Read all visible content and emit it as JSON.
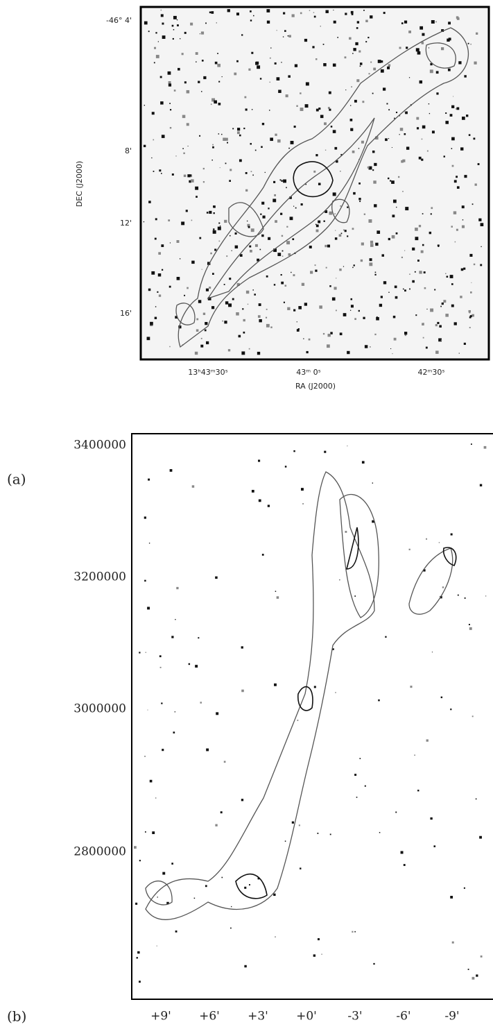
{
  "panel_a": {
    "label": "(a)",
    "y_ticks": [
      "-46° 4'",
      "8'",
      "12'",
      "16'"
    ],
    "x_ticks": [
      "13ʰ43ᵐ30ˢ",
      "43ᵐ 0ˢ",
      "42ᵐ30ˢ"
    ],
    "x_axis_title": "RA (J2000)",
    "y_axis_title": "DEC (J2000)"
  },
  "panel_b": {
    "label": "(b)",
    "y_ticks": [
      "3400000",
      "3200000",
      "3000000",
      "2800000"
    ],
    "x_ticks": [
      "+9'",
      "+6'",
      "+3'",
      "+0'",
      "-3'",
      "-6'",
      "-9'"
    ]
  }
}
